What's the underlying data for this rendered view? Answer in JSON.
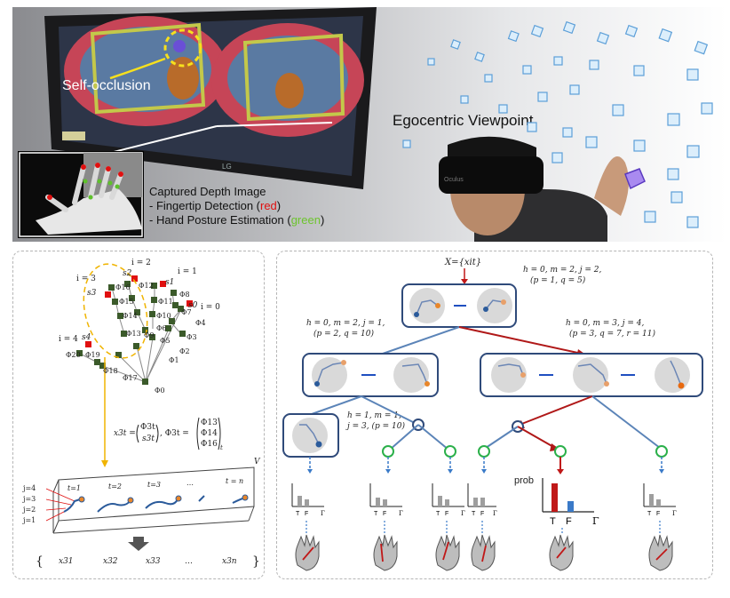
{
  "photo": {
    "self_occlusion_label": "Self-occlusion",
    "egocentric_label": "Egocentric Viewpoint",
    "captured_title": "Captured Depth Image",
    "fingertip_prefix": "- Fingertip Detection (",
    "fingertip_color_word": "red",
    "fingertip_suffix": ")",
    "posture_prefix": "- Hand Posture Estimation (",
    "posture_color_word": "green",
    "posture_suffix": ")",
    "tv_brand": "LG",
    "hmd_brand": "Oculus"
  },
  "left_panel": {
    "i_labels": [
      "i = 2",
      "i = 1",
      "i = 3",
      "i = 0",
      "i = 4"
    ],
    "s_labels": [
      "s2",
      "s1",
      "s3",
      "s0",
      "s4"
    ],
    "phi_labels": [
      "Φ12",
      "Φ8",
      "Φ16",
      "Φ11",
      "Φ15",
      "Φ7",
      "Φ14",
      "Φ10",
      "Φ4",
      "Φ6",
      "Φ13",
      "Φ9",
      "Φ3",
      "Φ5",
      "Φ2",
      "Φ20",
      "Φ19",
      "Φ1",
      "Φ18",
      "Φ17",
      "Φ0"
    ],
    "eq_left": "x3t =",
    "eq_top": "Φ3t",
    "eq_bottom": "s3t",
    "eq_mid": ",  Φ3t =",
    "eq_vec": [
      "Φ13",
      "Φ14",
      "Φ16"
    ],
    "eq_sub": "t",
    "volume_label": "V",
    "time_labels": [
      "t=1",
      "t=2",
      "t=3",
      "…",
      "t = n"
    ],
    "j_labels": [
      "j=4",
      "j=3",
      "j=2",
      "j=1"
    ],
    "sequence": [
      "x31",
      "x32",
      "x33",
      "…",
      "x3n"
    ]
  },
  "right_panel": {
    "input_label": "X={xit}",
    "root_params_1": "h = 0, m = 2, j = 2,",
    "root_params_2": "(p = 1, q = 5)",
    "left_params_1": "h = 0, m = 2, j = 1,",
    "left_params_2": "(p = 2, q = 10)",
    "right_params_1": "h = 0, m = 3, j = 4,",
    "right_params_2": "(p = 3, q = 7, r = 11)",
    "leaf_params_1": "h = 1, m = 1,",
    "leaf_params_2": "j = 3, (p = 10)",
    "prob_label": "prob",
    "t_label": "T",
    "f_label": "F",
    "gamma_label": "Γ",
    "small_t": "T",
    "small_f": "F",
    "small_gamma": "Γ"
  }
}
